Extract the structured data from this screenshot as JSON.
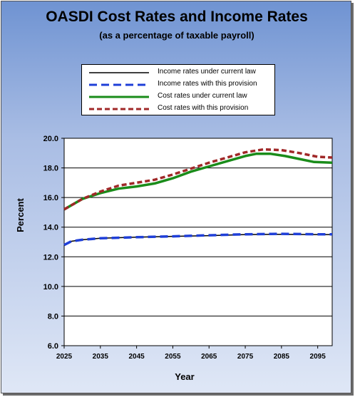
{
  "chart_data": {
    "type": "line",
    "title": "OASDI Cost Rates and Income Rates",
    "subtitle": "(as a percentage of taxable payroll)",
    "xlabel": "Year",
    "ylabel": "Percent",
    "xlim": [
      2025,
      2099
    ],
    "ylim": [
      6.0,
      20.0
    ],
    "xticks": [
      "2025",
      "2035",
      "2045",
      "2055",
      "2065",
      "2075",
      "2085",
      "2095"
    ],
    "yticks": [
      "6.0",
      "8.0",
      "10.0",
      "12.0",
      "14.0",
      "16.0",
      "18.0",
      "20.0"
    ],
    "grid": "horizontal",
    "legend_position": "top-center",
    "series": [
      {
        "name": "Income rates under current law",
        "style": "solid-thin",
        "color": "#000000",
        "points": [
          [
            2025,
            12.8
          ],
          [
            2027,
            13.05
          ],
          [
            2030,
            13.15
          ],
          [
            2035,
            13.25
          ],
          [
            2045,
            13.32
          ],
          [
            2055,
            13.38
          ],
          [
            2065,
            13.43
          ],
          [
            2075,
            13.5
          ],
          [
            2085,
            13.52
          ],
          [
            2095,
            13.5
          ],
          [
            2099,
            13.5
          ]
        ]
      },
      {
        "name": "Income rates with this provision",
        "style": "dashed-thick",
        "color": "#1f3fd8",
        "points": [
          [
            2025,
            12.8
          ],
          [
            2027,
            13.05
          ],
          [
            2030,
            13.15
          ],
          [
            2035,
            13.25
          ],
          [
            2045,
            13.32
          ],
          [
            2055,
            13.38
          ],
          [
            2065,
            13.45
          ],
          [
            2075,
            13.52
          ],
          [
            2085,
            13.55
          ],
          [
            2095,
            13.52
          ],
          [
            2099,
            13.52
          ]
        ]
      },
      {
        "name": "Cost rates under current law",
        "style": "solid-thick",
        "color": "#1a8c1a",
        "points": [
          [
            2025,
            15.2
          ],
          [
            2030,
            15.9
          ],
          [
            2035,
            16.3
          ],
          [
            2040,
            16.6
          ],
          [
            2045,
            16.75
          ],
          [
            2050,
            16.95
          ],
          [
            2055,
            17.3
          ],
          [
            2060,
            17.75
          ],
          [
            2065,
            18.1
          ],
          [
            2070,
            18.45
          ],
          [
            2075,
            18.8
          ],
          [
            2078,
            18.95
          ],
          [
            2082,
            18.95
          ],
          [
            2086,
            18.8
          ],
          [
            2090,
            18.6
          ],
          [
            2094,
            18.4
          ],
          [
            2099,
            18.35
          ]
        ]
      },
      {
        "name": "Cost rates with this provision",
        "style": "dashed-thick",
        "color": "#a02828",
        "points": [
          [
            2025,
            15.2
          ],
          [
            2030,
            15.9
          ],
          [
            2035,
            16.4
          ],
          [
            2040,
            16.8
          ],
          [
            2045,
            17.0
          ],
          [
            2050,
            17.2
          ],
          [
            2055,
            17.55
          ],
          [
            2060,
            17.95
          ],
          [
            2065,
            18.35
          ],
          [
            2070,
            18.7
          ],
          [
            2075,
            19.05
          ],
          [
            2080,
            19.25
          ],
          [
            2085,
            19.2
          ],
          [
            2090,
            19.0
          ],
          [
            2095,
            18.75
          ],
          [
            2099,
            18.7
          ]
        ]
      }
    ]
  }
}
